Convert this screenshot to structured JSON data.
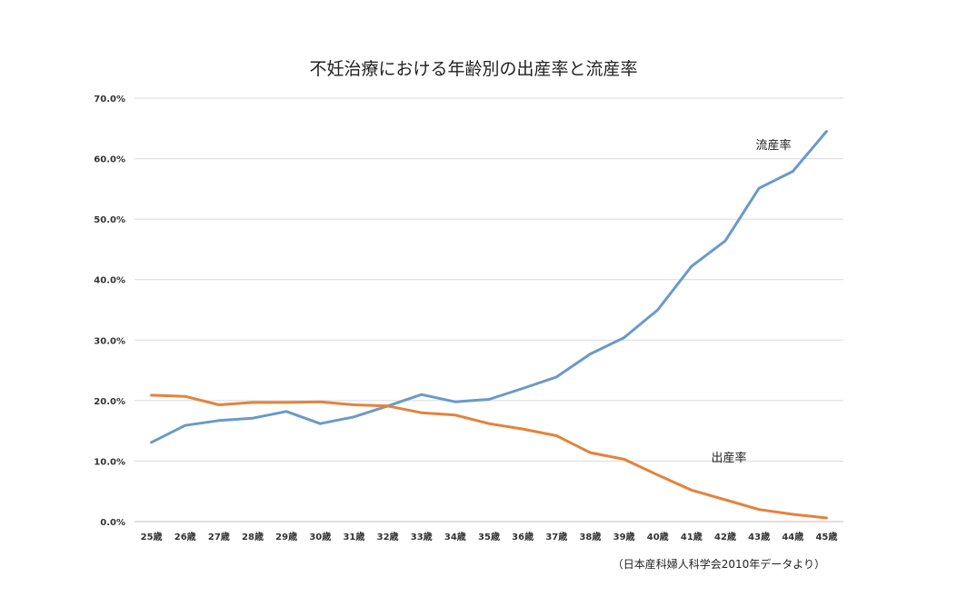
{
  "chart_data": {
    "type": "line",
    "title": "不妊治療における年齢別の出産率と流産率",
    "source_note": "（日本産科婦人科学会2010年データより）",
    "categories": [
      "25歳",
      "26歳",
      "27歳",
      "28歳",
      "29歳",
      "30歳",
      "31歳",
      "32歳",
      "33歳",
      "34歳",
      "35歳",
      "36歳",
      "37歳",
      "38歳",
      "39歳",
      "40歳",
      "41歳",
      "42歳",
      "43歳",
      "44歳",
      "45歳"
    ],
    "ylim": [
      0,
      70
    ],
    "yticks": [
      0,
      10,
      20,
      30,
      40,
      50,
      60,
      70
    ],
    "ytick_labels": [
      "0.0%",
      "10.0%",
      "20.0%",
      "30.0%",
      "40.0%",
      "50.0%",
      "60.0%",
      "70.0%"
    ],
    "grid": true,
    "series": [
      {
        "name": "流産率",
        "color": "#6a9ac8",
        "values": [
          13.1,
          15.9,
          16.7,
          17.1,
          18.2,
          16.2,
          17.3,
          19.1,
          21.0,
          19.8,
          20.2,
          22.0,
          23.9,
          27.7,
          30.4,
          35.0,
          42.2,
          46.4,
          55.1,
          57.9,
          64.5
        ]
      },
      {
        "name": "出産率",
        "color": "#e5823b",
        "values": [
          20.9,
          20.7,
          19.3,
          19.7,
          19.7,
          19.8,
          19.3,
          19.1,
          18.0,
          17.6,
          16.2,
          15.3,
          14.2,
          11.4,
          10.3,
          7.7,
          5.2,
          3.6,
          2.0,
          1.2,
          0.6
        ]
      }
    ]
  }
}
